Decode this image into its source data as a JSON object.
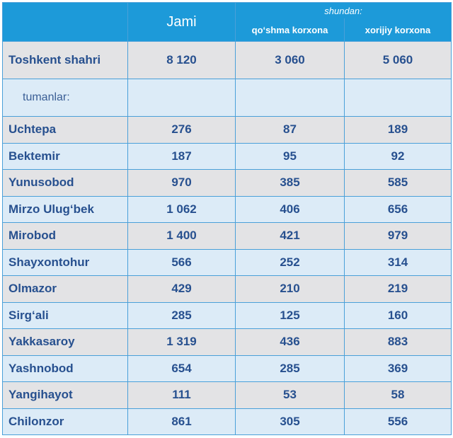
{
  "header": {
    "jami": "Jami",
    "shundan": "shundan:",
    "qoshma": "qo‘shma korxona",
    "xorijiy": "xorijiy korxona"
  },
  "total": {
    "name": "Toshkent shahri",
    "jami": "8 120",
    "qoshma": "3 060",
    "xorijiy": "5 060"
  },
  "tumanlar_label": "tumanlar:",
  "rows": [
    {
      "name": "Uchtepa",
      "jami": "276",
      "qoshma": "87",
      "xorijiy": "189"
    },
    {
      "name": "Bektemir",
      "jami": "187",
      "qoshma": "95",
      "xorijiy": "92"
    },
    {
      "name": "Yunusobod",
      "jami": "970",
      "qoshma": "385",
      "xorijiy": "585"
    },
    {
      "name": "Mirzo Ulug‘bek",
      "jami": "1 062",
      "qoshma": "406",
      "xorijiy": "656"
    },
    {
      "name": "Mirobod",
      "jami": "1 400",
      "qoshma": "421",
      "xorijiy": "979"
    },
    {
      "name": "Shayxontohur",
      "jami": "566",
      "qoshma": "252",
      "xorijiy": "314"
    },
    {
      "name": "Olmazor",
      "jami": "429",
      "qoshma": "210",
      "xorijiy": "219"
    },
    {
      "name": "Sirg‘ali",
      "jami": "285",
      "qoshma": "125",
      "xorijiy": "160"
    },
    {
      "name": "Yakkasaroy",
      "jami": "1 319",
      "qoshma": "436",
      "xorijiy": "883"
    },
    {
      "name": "Yashnobod",
      "jami": "654",
      "qoshma": "285",
      "xorijiy": "369"
    },
    {
      "name": "Yangihayot",
      "jami": "111",
      "qoshma": "53",
      "xorijiy": "58"
    },
    {
      "name": "Chilonzor",
      "jami": "861",
      "qoshma": "305",
      "xorijiy": "556"
    }
  ]
}
